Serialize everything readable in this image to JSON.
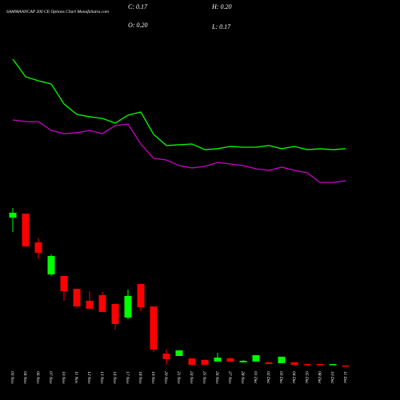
{
  "chart_data": {
    "type": "candlestick",
    "title": "SAMMAANCAP 200 CE Options Chart MunafaSutra.com",
    "info": [
      "C: 0.17",
      "H: 0.20",
      "O: 0.20",
      "L: 0.17"
    ],
    "categories": [
      "03 Nov",
      "04 Nov",
      "06 Nov",
      "07 Nov",
      "10 Nov",
      "11 Nov",
      "12 Nov",
      "13 Nov",
      "14 Nov",
      "17 Nov",
      "18 Nov",
      "19 Nov",
      "20 Nov",
      "21 Nov",
      "24 Nov",
      "25 Nov",
      "26 Nov",
      "27 Nov",
      "28 Nov",
      "01 Dec",
      "02 Dec",
      "03 Dec",
      "04 Dec",
      "05 Dec",
      "08 Dec",
      "10 Dec",
      "11 Dec"
    ],
    "open": [
      11.75,
      12.06,
      9.81,
      7.31,
      7.19,
      6.19,
      5.25,
      5.69,
      5.0,
      3.94,
      6.56,
      4.81,
      1.13,
      0.94,
      0.75,
      0.63,
      0.5,
      0.75,
      0.44,
      0.5,
      0.44,
      0.38,
      0.44,
      0.31,
      0.31,
      0.25,
      0.2
    ],
    "high": [
      12.5,
      12.06,
      10.13,
      8.88,
      7.19,
      6.19,
      6.0,
      5.94,
      5.0,
      6.13,
      6.56,
      4.81,
      1.44,
      1.38,
      0.75,
      0.63,
      1.19,
      0.81,
      0.63,
      1.0,
      0.44,
      0.88,
      0.44,
      0.31,
      0.31,
      0.31,
      0.2
    ],
    "low": [
      10.63,
      9.5,
      8.56,
      7.19,
      5.25,
      4.75,
      4.63,
      4.38,
      3.0,
      3.81,
      4.44,
      1.25,
      0.25,
      0.94,
      0.19,
      0.25,
      0.5,
      0.5,
      0.44,
      0.5,
      0.31,
      0.38,
      0.25,
      0.25,
      0.25,
      0.25,
      0.17
    ],
    "close": [
      12.13,
      9.5,
      9.0,
      8.75,
      6.0,
      4.81,
      4.63,
      4.38,
      3.44,
      5.63,
      4.75,
      1.44,
      0.69,
      1.38,
      0.25,
      0.25,
      0.81,
      0.5,
      0.56,
      1.0,
      0.31,
      0.88,
      0.25,
      0.25,
      0.25,
      0.31,
      0.17
    ],
    "up_color": "#00ff00",
    "down_color": "#ff0000",
    "lines": [
      {
        "color": "#00ff00",
        "values": [
          24.13,
          22.75,
          22.44,
          22.19,
          20.63,
          19.81,
          19.63,
          19.5,
          19.13,
          19.75,
          20.0,
          18.25,
          17.38,
          17.44,
          17.5,
          17.06,
          17.13,
          17.31,
          17.25,
          17.25,
          17.38,
          17.13,
          17.31,
          17.06,
          17.13,
          17.06,
          17.13
        ]
      },
      {
        "color": "#cc00cc",
        "values": [
          19.38,
          19.25,
          19.25,
          18.56,
          18.31,
          18.38,
          18.56,
          18.31,
          18.94,
          19.06,
          17.5,
          16.38,
          16.25,
          15.81,
          15.63,
          15.75,
          16.06,
          15.94,
          15.81,
          15.56,
          15.44,
          15.69,
          15.44,
          15.25,
          14.5,
          14.5,
          14.63
        ]
      }
    ],
    "ylim": [
      0,
      28.75
    ]
  }
}
